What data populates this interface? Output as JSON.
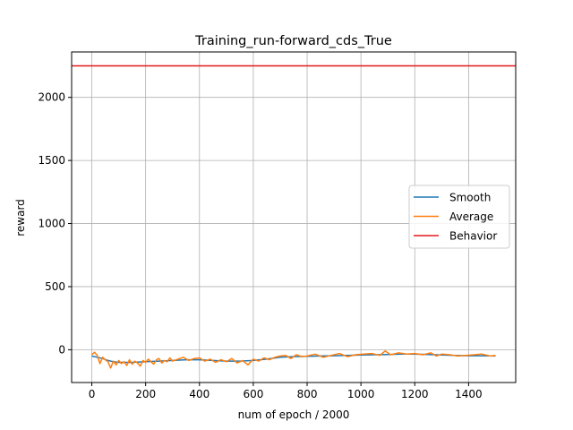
{
  "chart_data": {
    "type": "line",
    "title": "Training_run-forward_cds_True",
    "xlabel": "num of epoch / 2000",
    "ylabel": "reward",
    "xlim": [
      -75,
      1575
    ],
    "ylim": [
      -260,
      2360
    ],
    "xticks": [
      0,
      200,
      400,
      600,
      800,
      1000,
      1200,
      1400
    ],
    "yticks": [
      0,
      500,
      1000,
      1500,
      2000
    ],
    "grid": true,
    "legend_position": "center-right",
    "series": [
      {
        "name": "Smooth",
        "color": "#1f77b4",
        "x": [
          0,
          20,
          40,
          60,
          80,
          100,
          150,
          200,
          250,
          300,
          350,
          400,
          450,
          500,
          550,
          600,
          650,
          700,
          750,
          800,
          850,
          900,
          950,
          1000,
          1050,
          1100,
          1150,
          1200,
          1250,
          1300,
          1350,
          1400,
          1450,
          1500
        ],
        "values": [
          -50,
          -60,
          -70,
          -85,
          -95,
          -100,
          -100,
          -95,
          -90,
          -85,
          -80,
          -80,
          -85,
          -90,
          -90,
          -85,
          -75,
          -60,
          -55,
          -52,
          -50,
          -48,
          -45,
          -42,
          -40,
          -38,
          -35,
          -35,
          -38,
          -42,
          -45,
          -48,
          -48,
          -50
        ]
      },
      {
        "name": "Average",
        "color": "#ff7f0e",
        "x": [
          0,
          10,
          20,
          30,
          40,
          50,
          60,
          70,
          80,
          90,
          100,
          110,
          120,
          130,
          140,
          150,
          160,
          170,
          180,
          190,
          200,
          210,
          220,
          230,
          240,
          250,
          260,
          270,
          280,
          290,
          300,
          320,
          340,
          360,
          380,
          400,
          420,
          440,
          460,
          480,
          500,
          520,
          540,
          560,
          580,
          600,
          620,
          640,
          660,
          680,
          700,
          720,
          740,
          760,
          780,
          800,
          830,
          860,
          890,
          920,
          950,
          980,
          1010,
          1040,
          1070,
          1090,
          1110,
          1140,
          1170,
          1200,
          1230,
          1260,
          1280,
          1300,
          1330,
          1360,
          1390,
          1420,
          1450,
          1480,
          1500
        ],
        "values": [
          -40,
          -20,
          -45,
          -110,
          -60,
          -80,
          -95,
          -145,
          -90,
          -120,
          -85,
          -110,
          -95,
          -125,
          -80,
          -115,
          -90,
          -105,
          -130,
          -85,
          -100,
          -75,
          -95,
          -115,
          -80,
          -70,
          -105,
          -85,
          -95,
          -65,
          -90,
          -75,
          -60,
          -85,
          -70,
          -65,
          -90,
          -75,
          -100,
          -80,
          -95,
          -70,
          -105,
          -85,
          -120,
          -75,
          -90,
          -65,
          -80,
          -60,
          -50,
          -45,
          -70,
          -40,
          -55,
          -50,
          -35,
          -60,
          -45,
          -30,
          -55,
          -40,
          -35,
          -30,
          -45,
          -10,
          -40,
          -25,
          -35,
          -30,
          -40,
          -25,
          -50,
          -35,
          -40,
          -50,
          -45,
          -40,
          -35,
          -50,
          -45
        ]
      },
      {
        "name": "Behavior",
        "color": "#e41a1c",
        "x": [
          -75,
          1575
        ],
        "values": [
          2250,
          2250
        ]
      }
    ]
  }
}
